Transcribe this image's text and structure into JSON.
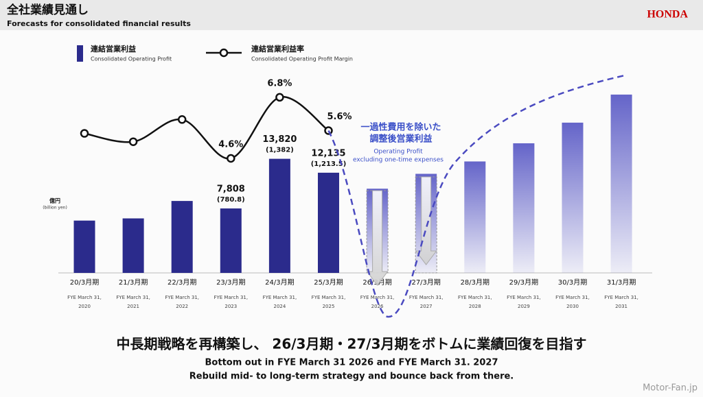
{
  "chart_data": {
    "type": "bar",
    "title": "全社業績見通し",
    "subtitle": "Forecasts for consolidated financial results",
    "brand": "HONDA",
    "unit_label": "億円",
    "unit_label_en": "(billion yen)",
    "categories": [
      "20/3月期",
      "21/3月期",
      "22/3月期",
      "23/3月期",
      "24/3月期",
      "25/3月期",
      "26/3月期",
      "27/3月期",
      "28/3月期",
      "29/3月期",
      "30/3月期",
      "31/3月期"
    ],
    "categories_en": [
      [
        "FYE March 31,",
        "2020"
      ],
      [
        "FYE March 31,",
        "2021"
      ],
      [
        "FYE March 31,",
        "2022"
      ],
      [
        "FYE March 31,",
        "2023"
      ],
      [
        "FYE March 31,",
        "2024"
      ],
      [
        "FYE March 31,",
        "2025"
      ],
      [
        "FYE March 31,",
        "2026"
      ],
      [
        "FYE March 31,",
        "2027"
      ],
      [
        "FYE March 31,",
        "2028"
      ],
      [
        "FYE March 31,",
        "2029"
      ],
      [
        "FYE March 31,",
        "2030"
      ],
      [
        "FYE March 31,",
        "2031"
      ]
    ],
    "series": [
      {
        "name": "連結営業利益",
        "name_en": "Consolidated Operating Profit",
        "color": "#2b2b8c",
        "values": [
          6336,
          6602,
          8712,
          7808,
          13820,
          12135,
          10200,
          12000,
          13500,
          15700,
          18200,
          21600
        ],
        "value_labels": [
          null,
          null,
          null,
          "7,808",
          "13,820",
          "12,135",
          null,
          null,
          null,
          null,
          null,
          null
        ],
        "sub_labels": [
          null,
          null,
          null,
          "(780.8)",
          "(1,382)",
          "(1,213.5)",
          null,
          null,
          null,
          null,
          null,
          null
        ]
      },
      {
        "name": "連結営業利益率",
        "name_en": "Consolidated Operating Profit Margin",
        "color": "#111111",
        "values": [
          5.5,
          5.2,
          6.0,
          4.6,
          6.8,
          5.6,
          null,
          null,
          null,
          null,
          null,
          null
        ],
        "value_labels": [
          null,
          null,
          null,
          "4.6%",
          "6.8%",
          "5.6%",
          null,
          null,
          null,
          null,
          null,
          null
        ]
      }
    ],
    "annotation": [
      "一過性費用を除いた",
      "調整後営業利益",
      "Operating Profit",
      "excluding one-time expenses"
    ],
    "footer": [
      "中長期戦略を再構築し、 26/3月期・27/3月期をボトムに業績回復を目指す",
      "Bottom out in FYE March 31 2026 and FYE March 31. 2027",
      "Rebuild mid- to long-term strategy and bounce back from there."
    ],
    "watermark": "Motor-Fan.jp"
  }
}
